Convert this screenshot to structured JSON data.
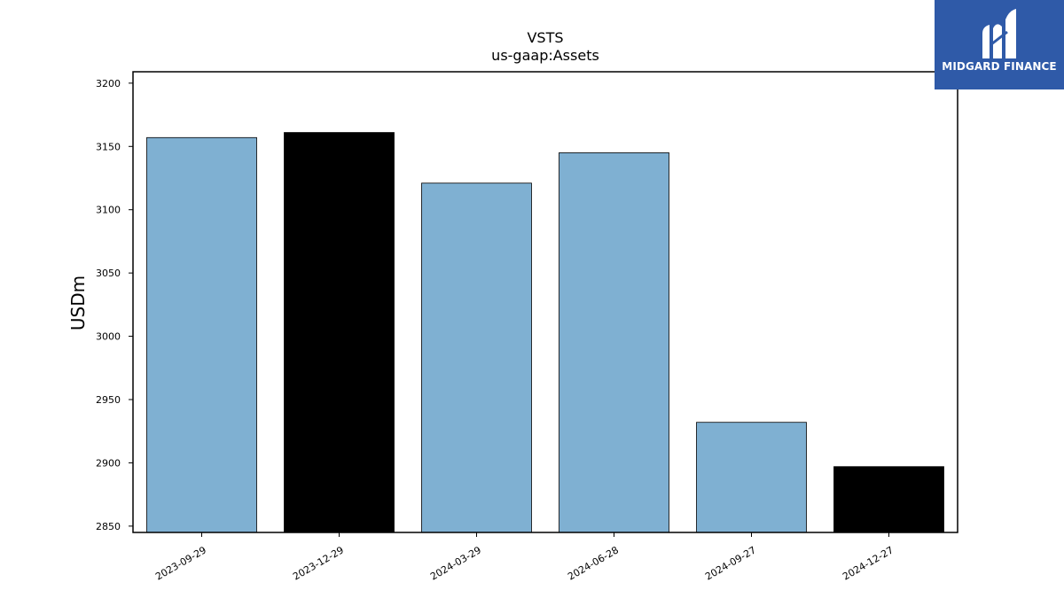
{
  "logo": {
    "text": "MIDGARD FINANCE"
  },
  "chart_data": {
    "type": "bar",
    "title": "VSTS",
    "subtitle": "us-gaap:Assets",
    "xlabel": "",
    "ylabel": "USDm",
    "categories": [
      "2023-09-29",
      "2023-12-29",
      "2024-03-29",
      "2024-06-28",
      "2024-09-27",
      "2024-12-27"
    ],
    "values": [
      3157,
      3161,
      3121,
      3145,
      2932,
      2897
    ],
    "bar_colors": [
      "#7fb0d2",
      "#000000",
      "#7fb0d2",
      "#7fb0d2",
      "#7fb0d2",
      "#000000"
    ],
    "ylim": [
      2845,
      3209
    ],
    "yticks": [
      2850,
      2900,
      2950,
      3000,
      3050,
      3100,
      3150,
      3200
    ],
    "grid": false,
    "legend": "none"
  }
}
